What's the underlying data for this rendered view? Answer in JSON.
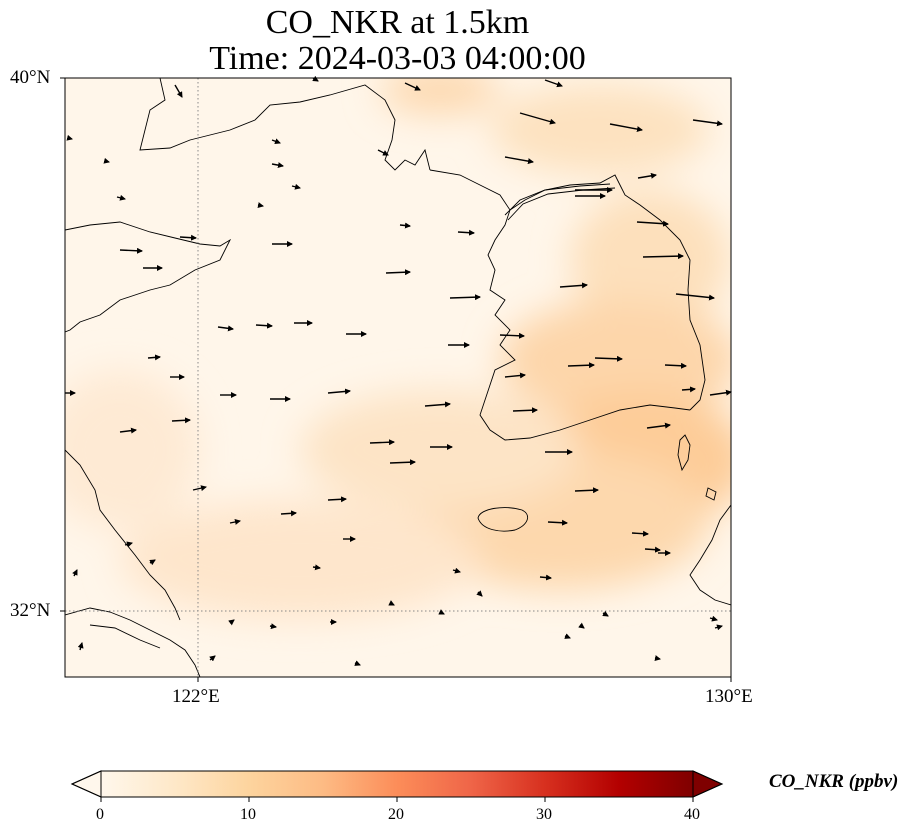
{
  "title": {
    "line1": "CO_NKR at 1.5km",
    "line2": "Time: 2024-03-03 04:00:00"
  },
  "axes": {
    "lat_labels": [
      "40°N",
      "32°N"
    ],
    "lon_labels": [
      "122°E",
      "130°E"
    ],
    "lon_range": [
      120,
      130
    ],
    "lat_range": [
      31,
      40
    ],
    "gridlines": "dotted at 122°E and 32°N"
  },
  "colorbar": {
    "label": "CO_NKR (ppbv)",
    "ticks": [
      "0",
      "10",
      "20",
      "30",
      "40"
    ],
    "range": [
      0,
      40
    ],
    "cmap": "OrRd",
    "extend": "both",
    "colors": [
      "#fff7ec",
      "#fee8c8",
      "#fdd49e",
      "#fdbb84",
      "#fc8d59",
      "#ef6548",
      "#d7301f",
      "#b30000",
      "#7f0000"
    ]
  },
  "map_colors": {
    "coastline": "#000000",
    "background": "#fff6ea"
  }
}
